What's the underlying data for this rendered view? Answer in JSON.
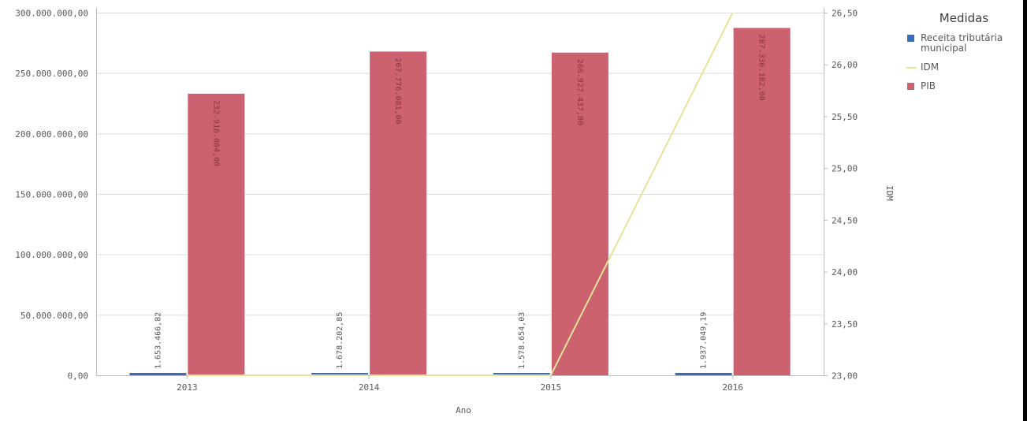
{
  "legend": {
    "title": "Medidas",
    "items": [
      {
        "label": "Receita tributária municipal",
        "color": "#3a6db5",
        "kind": "box"
      },
      {
        "label": "IDM",
        "color": "#e8e29a",
        "kind": "line"
      },
      {
        "label": "PIB",
        "color": "#cc6170",
        "kind": "box"
      }
    ]
  },
  "chart_data": {
    "type": "bar",
    "xlabel": "Ano",
    "y2label": "IDM",
    "categories": [
      "2013",
      "2014",
      "2015",
      "2016"
    ],
    "ylim": [
      0,
      300000000
    ],
    "y2lim": [
      23.0,
      26.5
    ],
    "y_ticks": [
      "0,00",
      "50.000.000,00",
      "100.000.000,00",
      "150.000.000,00",
      "200.000.000,00",
      "250.000.000,00",
      "300.000.000,00"
    ],
    "y2_ticks": [
      "23,00",
      "23,50",
      "24,00",
      "24,50",
      "25,00",
      "25,50",
      "26,00",
      "26,50"
    ],
    "series": [
      {
        "name": "Receita tributária municipal",
        "type": "bar",
        "axis": "left",
        "color": "#3a6db5",
        "values": [
          1653466.82,
          1678202.85,
          1578654.03,
          1937049.19
        ],
        "labels": [
          "1.653.466,82",
          "1.678.202,85",
          "1.578.654,03",
          "1.937.049,19"
        ]
      },
      {
        "name": "PIB",
        "type": "bar",
        "axis": "left",
        "color": "#cc6170",
        "values": [
          232916004,
          267776081,
          266927437,
          287336182
        ],
        "labels": [
          "232.916.004,00",
          "267.776.081,00",
          "266.927.437,00",
          "287.336.182,00"
        ]
      },
      {
        "name": "IDM",
        "type": "line",
        "axis": "right",
        "color": "#e8e29a",
        "values": [
          23.0,
          23.0,
          23.0,
          26.5
        ]
      }
    ]
  }
}
